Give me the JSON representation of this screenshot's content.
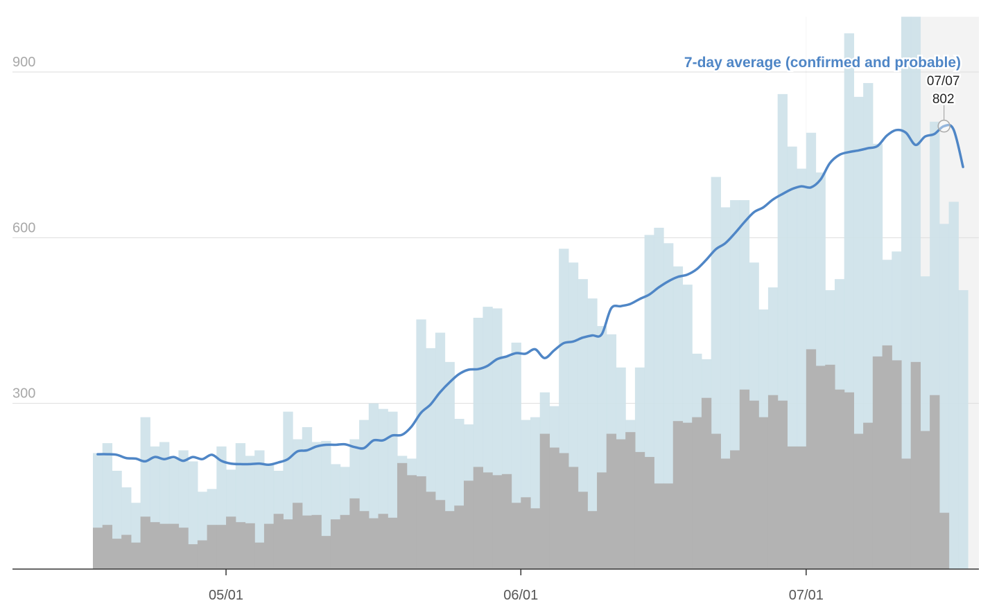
{
  "chart_data": {
    "type": "bar",
    "x_labels": [
      "05/01",
      "06/01",
      "07/01"
    ],
    "y_ticks": [
      300,
      600,
      900
    ],
    "ylim": [
      0,
      1000
    ],
    "grid": true,
    "series": [
      {
        "values": [
          210,
          228,
          178,
          148,
          120,
          275,
          222,
          230,
          200,
          215,
          195,
          140,
          145,
          222,
          180,
          228,
          205,
          215,
          190,
          178,
          285,
          235,
          257,
          230,
          232,
          190,
          185,
          235,
          270,
          300,
          290,
          285,
          205,
          200,
          452,
          400,
          428,
          375,
          272,
          262,
          455,
          475,
          472,
          385,
          410,
          270,
          275,
          320,
          295,
          580,
          555,
          525,
          490,
          440,
          425,
          365,
          270,
          365,
          605,
          618,
          590,
          548,
          515,
          390,
          380,
          710,
          655,
          668,
          668,
          555,
          470,
          510,
          860,
          765,
          725,
          790,
          718,
          505,
          525,
          970,
          855,
          880,
          770,
          560,
          575,
          1010,
          1025,
          530,
          810,
          625,
          665,
          505
        ]
      },
      {
        "values": [
          75,
          80,
          55,
          62,
          48,
          95,
          85,
          82,
          82,
          75,
          45,
          52,
          80,
          80,
          95,
          85,
          83,
          48,
          82,
          100,
          90,
          120,
          97,
          98,
          60,
          90,
          98,
          128,
          105,
          92,
          100,
          93,
          192,
          170,
          168,
          140,
          125,
          105,
          115,
          160,
          185,
          175,
          170,
          172,
          120,
          130,
          110,
          245,
          220,
          210,
          185,
          140,
          105,
          175,
          245,
          235,
          248,
          212,
          203,
          155,
          155,
          268,
          265,
          275,
          310,
          245,
          200,
          215,
          325,
          305,
          275,
          315,
          305,
          222,
          222,
          398,
          368,
          370,
          325,
          320,
          245,
          265,
          385,
          405,
          378,
          200,
          375,
          250,
          315,
          102,
          0,
          0
        ]
      },
      {
        "name": "7-day average (confirmed and probable)",
        "values": [
          208,
          208,
          207,
          201,
          200,
          195,
          203,
          199,
          203,
          196,
          203,
          199,
          207,
          196,
          191,
          190,
          190,
          191,
          189,
          193,
          199,
          213,
          215,
          222,
          225,
          225,
          226,
          221,
          219,
          233,
          233,
          242,
          243,
          258,
          283,
          298,
          320,
          338,
          353,
          361,
          362,
          368,
          380,
          385,
          391,
          390,
          398,
          382,
          396,
          409,
          412,
          419,
          423,
          425,
          472,
          476,
          480,
          489,
          497,
          510,
          521,
          529,
          533,
          543,
          560,
          579,
          590,
          608,
          628,
          646,
          655,
          669,
          679,
          688,
          693,
          691,
          705,
          735,
          750,
          755,
          758,
          762,
          766,
          785,
          795,
          790,
          768,
          783,
          788,
          802,
          796,
          728
        ]
      }
    ],
    "annotation": {
      "date": "07/07",
      "value": "802"
    }
  },
  "colors": {
    "confirmed_bars": "#cde1e9",
    "probable_bars": "#b3b3b3",
    "average_line": "#4f86c6",
    "recent_shade": "#f3f3f3",
    "gridline": "#dddddd",
    "axis": "#333333"
  }
}
